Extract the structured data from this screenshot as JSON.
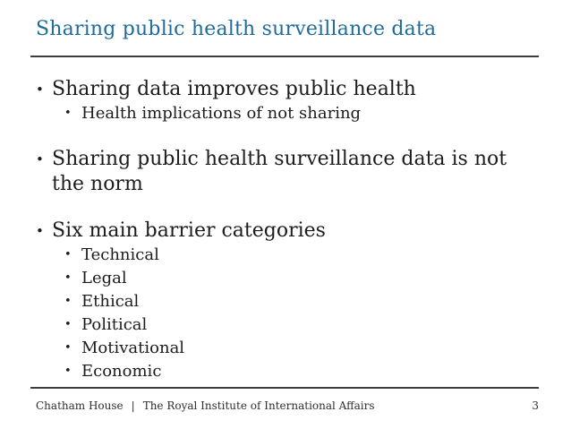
{
  "slide": {
    "title": "Sharing public health surveillance data",
    "bullet_char": "•",
    "bullets": [
      {
        "text": "Sharing data improves public health",
        "children": [
          "Health implications of not sharing"
        ]
      },
      {
        "text": "Sharing public health surveillance data is not the norm",
        "children": []
      },
      {
        "text": "Six main barrier categories",
        "children": [
          "Technical",
          "Legal",
          "Ethical",
          "Political",
          "Motivational",
          "Economic"
        ]
      }
    ],
    "footer": {
      "organization": "Chatham House",
      "separator": "|",
      "institute": "The Royal Institute of International Affairs",
      "page_number": "3"
    },
    "colors": {
      "title_blue": "#1f6b9a",
      "body_text": "#1c1c1c",
      "rule_line": "#3d3d3d",
      "background": "#ffffff"
    }
  }
}
